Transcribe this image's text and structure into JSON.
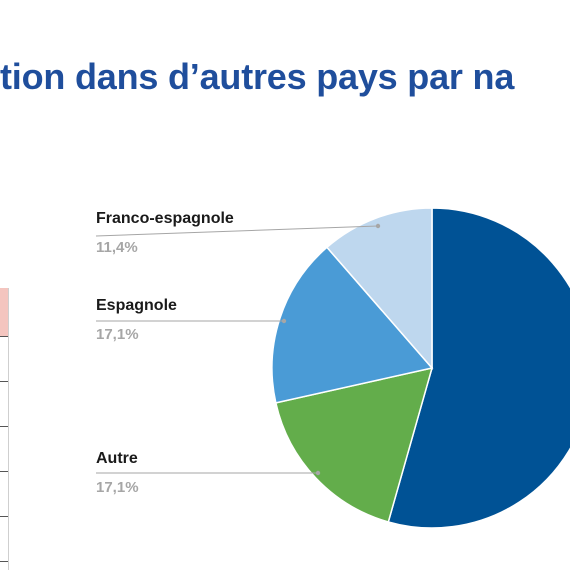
{
  "title": "tion dans d’autres pays par na",
  "chart_data": {
    "type": "pie",
    "start_angle_deg": 0,
    "direction": "clockwise",
    "slices": [
      {
        "label": "",
        "value": 54.4,
        "value_label": "",
        "color": "#005295"
      },
      {
        "label": "Autre",
        "value": 17.1,
        "value_label": "17,1%",
        "color": "#63ad4b"
      },
      {
        "label": "Espagnole",
        "value": 17.1,
        "value_label": "17,1%",
        "color": "#4a9bd6"
      },
      {
        "label": "Franco-espagnole",
        "value": 11.4,
        "value_label": "11,4%",
        "color": "#bed7ee"
      }
    ]
  }
}
